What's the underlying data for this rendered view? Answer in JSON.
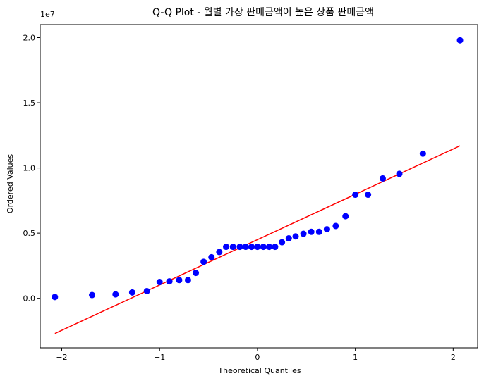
{
  "chart_data": {
    "type": "scatter",
    "title": "Q-Q Plot - 월별 가장 판매금액이 높은 상품 판매금액",
    "xlabel": "Theoretical Quantiles",
    "ylabel": "Ordered Values",
    "offset_text": "1e7",
    "xlim": [
      -2.22,
      2.25
    ],
    "ylim": [
      -3.8,
      21.0
    ],
    "y_scale": 1000000,
    "x_ticks": [
      -2,
      -1,
      0,
      1,
      2
    ],
    "x_tick_labels": [
      "−2",
      "−1",
      "0",
      "1",
      "2"
    ],
    "y_ticks": [
      0.0,
      5.0,
      10.0,
      15.0,
      20.0
    ],
    "y_tick_labels": [
      "0.0",
      "0.5",
      "1.0",
      "1.5",
      "2.0"
    ],
    "grid": false,
    "series": [
      {
        "marker_color": "#0000ff",
        "x": [
          -2.07,
          -1.69,
          -1.45,
          -1.28,
          -1.13,
          -1.0,
          -0.9,
          -0.8,
          -0.71,
          -0.63,
          -0.55,
          -0.47,
          -0.39,
          -0.32,
          -0.25,
          -0.18,
          -0.12,
          -0.06,
          0.0,
          0.06,
          0.12,
          0.18,
          0.25,
          0.32,
          0.39,
          0.47,
          0.55,
          0.63,
          0.71,
          0.8,
          0.9,
          1.0,
          1.13,
          1.28,
          1.45,
          1.69,
          2.07
        ],
        "y": [
          0.1,
          0.25,
          0.3,
          0.45,
          0.55,
          1.25,
          1.3,
          1.4,
          1.4,
          1.95,
          2.8,
          3.15,
          3.55,
          3.95,
          3.95,
          3.95,
          3.95,
          3.95,
          3.95,
          3.95,
          3.95,
          3.95,
          4.3,
          4.6,
          4.75,
          4.95,
          5.1,
          5.1,
          5.3,
          5.55,
          6.3,
          7.95,
          7.95,
          9.2,
          9.55,
          11.1,
          19.8
        ]
      },
      {
        "line_color": "#ff0000",
        "x": [
          -2.07,
          2.07
        ],
        "y": [
          -2.7,
          11.7
        ]
      }
    ]
  }
}
